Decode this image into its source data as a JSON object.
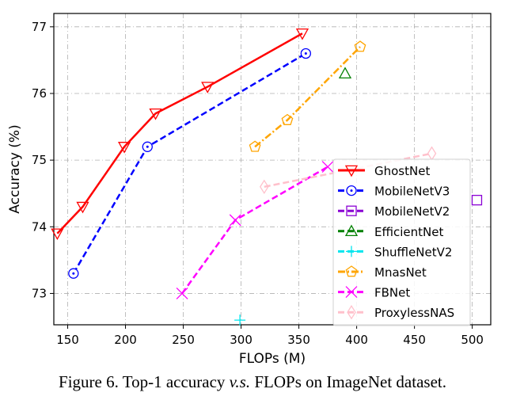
{
  "chart_data": {
    "type": "line",
    "xlabel": "FLOPs (M)",
    "ylabel": "Accuracy (%)",
    "xlim": [
      138,
      516
    ],
    "ylim": [
      72.53,
      77.2
    ],
    "xticks": [
      150,
      200,
      250,
      300,
      350,
      400,
      450,
      500
    ],
    "yticks": [
      73,
      74,
      75,
      76,
      77
    ],
    "grid": true,
    "legend_position": "center-right",
    "series": [
      {
        "name": "GhostNet",
        "color": "#ff0000",
        "marker": "triangle-down",
        "dash": "solid",
        "points": [
          [
            141,
            73.9
          ],
          [
            163,
            74.3
          ],
          [
            199,
            75.2
          ],
          [
            226,
            75.7
          ],
          [
            271,
            76.1
          ],
          [
            353,
            76.9
          ]
        ]
      },
      {
        "name": "MobileNetV3",
        "color": "#0000ff",
        "marker": "circle-dot",
        "dash": "dashed",
        "points": [
          [
            155,
            73.3
          ],
          [
            219,
            75.2
          ],
          [
            356,
            76.6
          ]
        ]
      },
      {
        "name": "MobileNetV2",
        "color": "#8a00d4",
        "marker": "square",
        "dash": "dashed",
        "points": [
          [
            504,
            74.4
          ]
        ]
      },
      {
        "name": "EfficientNet",
        "color": "#008000",
        "marker": "triangle-up",
        "dash": "dashed",
        "points": [
          [
            390,
            76.3
          ]
        ]
      },
      {
        "name": "ShuffleNetV2",
        "color": "#00e5ee",
        "marker": "plus",
        "dash": "dashed",
        "points": [
          [
            299,
            72.6
          ]
        ]
      },
      {
        "name": "MnasNet",
        "color": "#ffa500",
        "marker": "pentagon",
        "dash": "dashdot",
        "points": [
          [
            312,
            75.2
          ],
          [
            340,
            75.6
          ],
          [
            403,
            76.7
          ]
        ]
      },
      {
        "name": "FBNet",
        "color": "#ff00ff",
        "marker": "x",
        "dash": "dashed",
        "points": [
          [
            249,
            73.0
          ],
          [
            295,
            74.1
          ],
          [
            375,
            74.9
          ]
        ]
      },
      {
        "name": "ProxylessNAS",
        "color": "#ffc0cb",
        "marker": "thin-diamond",
        "dash": "dashed",
        "points": [
          [
            320,
            74.6
          ],
          [
            465,
            75.1
          ]
        ]
      }
    ]
  },
  "caption": "Figure 6. Top-1 accuracy v.s. FLOPs on ImageNet dataset."
}
